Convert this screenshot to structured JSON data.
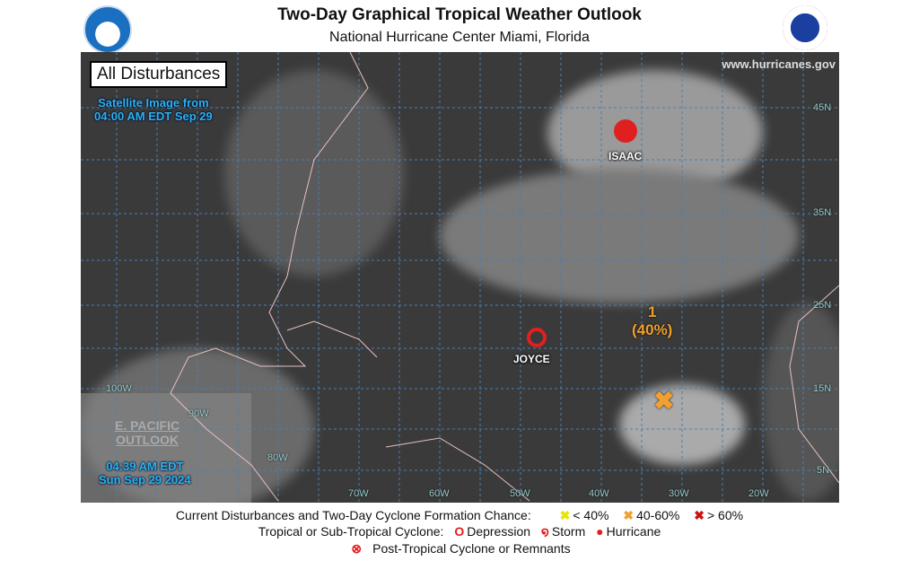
{
  "header": {
    "title": "Two-Day Graphical Tropical Weather Outlook",
    "subtitle": "National Hurricane Center  Miami, Florida",
    "left_logo": "NOAA",
    "right_logo": "NATIONAL WEATHER SERVICE"
  },
  "map": {
    "box_label": "All Disturbances",
    "satellite_line1": "Satellite Image from",
    "satellite_line2": "04:00 AM EDT Sep 29",
    "website": "www.hurricanes.gov",
    "epac_line1": "E. PACIFIC",
    "epac_line2": "OUTLOOK",
    "time_line1": "04:39 AM EDT",
    "time_line2": "Sun Sep 29 2024",
    "lat_labels": [
      "45N",
      "35N",
      "25N",
      "15N",
      "5N"
    ],
    "lon_labels": [
      "100W",
      "90W",
      "80W",
      "70W",
      "60W",
      "50W",
      "40W",
      "30W",
      "20W"
    ],
    "storms": [
      {
        "name": "ISAAC",
        "type": "hurricane"
      },
      {
        "name": "JOYCE",
        "type": "storm"
      }
    ],
    "disturbance": {
      "number": "1",
      "chance": "(40%)",
      "category": "40-60%",
      "color": "#f0a030"
    }
  },
  "legend": {
    "line1_label": "Current Disturbances and Two-Day Cyclone Formation Chance:",
    "low": "< 40%",
    "mid": "40-60%",
    "high": "> 60%",
    "line2_label": "Tropical or Sub-Tropical Cyclone:",
    "depression": "Depression",
    "storm": "Storm",
    "hurricane": "Hurricane",
    "line3": "Post-Tropical Cyclone or Remnants",
    "colors": {
      "low": "#ffff33",
      "mid": "#f0a030",
      "high": "#cc1111",
      "cyclone": "#e02020"
    }
  }
}
